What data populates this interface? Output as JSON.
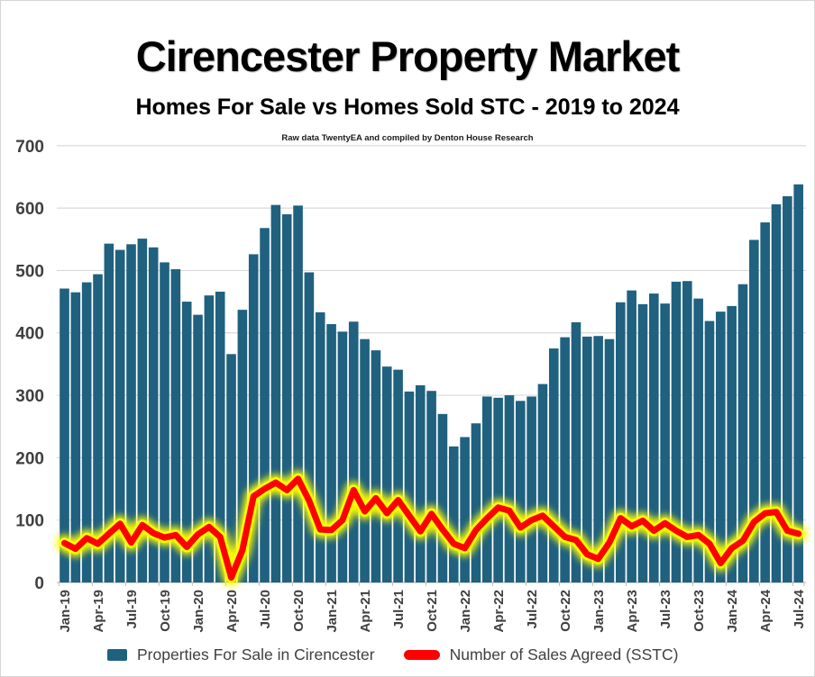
{
  "header": {
    "title": "Cirencester Property Market",
    "subtitle": "Homes For Sale vs Homes Sold STC - 2019 to 2024",
    "source_note": "Raw data TwentyEA and compiled by Denton House Research"
  },
  "colors": {
    "bar": "#1F617F",
    "line": "#FF0000",
    "line_glow": "#FFFF00",
    "gridline": "#d9d9d9",
    "axis": "#bfbfbf",
    "axis_text": "#404040"
  },
  "chart_data": {
    "type": "bar",
    "title": "Cirencester Property Market",
    "subtitle": "Homes For Sale vs Homes Sold STC - 2019 to 2024",
    "xlabel": "",
    "ylabel": "",
    "ylim": [
      0,
      700
    ],
    "y_ticks": [
      0,
      100,
      200,
      300,
      400,
      500,
      600,
      700
    ],
    "grid": true,
    "legend_position": "bottom",
    "categories": [
      "Jan-19",
      "Feb-19",
      "Mar-19",
      "Apr-19",
      "May-19",
      "Jun-19",
      "Jul-19",
      "Aug-19",
      "Sep-19",
      "Oct-19",
      "Nov-19",
      "Dec-19",
      "Jan-20",
      "Feb-20",
      "Mar-20",
      "Apr-20",
      "May-20",
      "Jun-20",
      "Jul-20",
      "Aug-20",
      "Sep-20",
      "Oct-20",
      "Nov-20",
      "Dec-20",
      "Jan-21",
      "Feb-21",
      "Mar-21",
      "Apr-21",
      "May-21",
      "Jun-21",
      "Jul-21",
      "Aug-21",
      "Sep-21",
      "Oct-21",
      "Nov-21",
      "Dec-21",
      "Jan-22",
      "Feb-22",
      "Mar-22",
      "Apr-22",
      "May-22",
      "Jun-22",
      "Jul-22",
      "Aug-22",
      "Sep-22",
      "Oct-22",
      "Nov-22",
      "Dec-22",
      "Jan-23",
      "Feb-23",
      "Mar-23",
      "Apr-23",
      "May-23",
      "Jun-23",
      "Jul-23",
      "Aug-23",
      "Sep-23",
      "Oct-23",
      "Nov-23",
      "Dec-23",
      "Jan-24",
      "Feb-24",
      "Mar-24",
      "Apr-24",
      "May-24",
      "Jun-24",
      "Jul-24"
    ],
    "x_tick_labels": [
      "Jan-19",
      "Apr-19",
      "Jul-19",
      "Oct-19",
      "Jan-20",
      "Apr-20",
      "Jul-20",
      "Oct-20",
      "Jan-21",
      "Apr-21",
      "Jul-21",
      "Oct-21",
      "Jan-22",
      "Apr-22",
      "Jul-22",
      "Oct-22",
      "Jan-23",
      "Apr-23",
      "Jul-23",
      "Oct-23",
      "Jan-24",
      "Apr-24",
      "Jul-24"
    ],
    "series": [
      {
        "name": "Properties For Sale in Cirencester",
        "type": "bar",
        "color": "#1F617F",
        "values": [
          471,
          465,
          481,
          494,
          543,
          533,
          542,
          551,
          537,
          513,
          502,
          450,
          429,
          460,
          466,
          366,
          437,
          526,
          568,
          605,
          590,
          604,
          497,
          433,
          414,
          402,
          418,
          390,
          372,
          346,
          341,
          306,
          316,
          307,
          270,
          218,
          233,
          255,
          298,
          296,
          300,
          291,
          298,
          318,
          375,
          393,
          417,
          394,
          395,
          390,
          449,
          468,
          446,
          463,
          447,
          482,
          483,
          455,
          419,
          434,
          443,
          478,
          549,
          577,
          606,
          619,
          638
        ]
      },
      {
        "name": "Number of Sales Agreed (SSTC)",
        "type": "line",
        "color": "#FF0000",
        "glow_color": "#FFFF00",
        "values": [
          63,
          54,
          71,
          62,
          78,
          94,
          64,
          92,
          79,
          72,
          76,
          57,
          77,
          89,
          73,
          8,
          52,
          138,
          150,
          160,
          148,
          166,
          131,
          85,
          84,
          100,
          148,
          114,
          135,
          111,
          132,
          107,
          82,
          110,
          85,
          62,
          55,
          84,
          103,
          120,
          115,
          88,
          100,
          107,
          90,
          73,
          68,
          45,
          38,
          64,
          103,
          90,
          99,
          83,
          95,
          83,
          73,
          76,
          62,
          31,
          55,
          67,
          97,
          111,
          113,
          83,
          78
        ]
      }
    ]
  },
  "legend": {
    "items": [
      {
        "label": "Properties For Sale in Cirencester",
        "swatch": "bar",
        "color": "#1F617F"
      },
      {
        "label": "Number of Sales Agreed (SSTC)",
        "swatch": "line",
        "color": "#FF0000"
      }
    ]
  }
}
